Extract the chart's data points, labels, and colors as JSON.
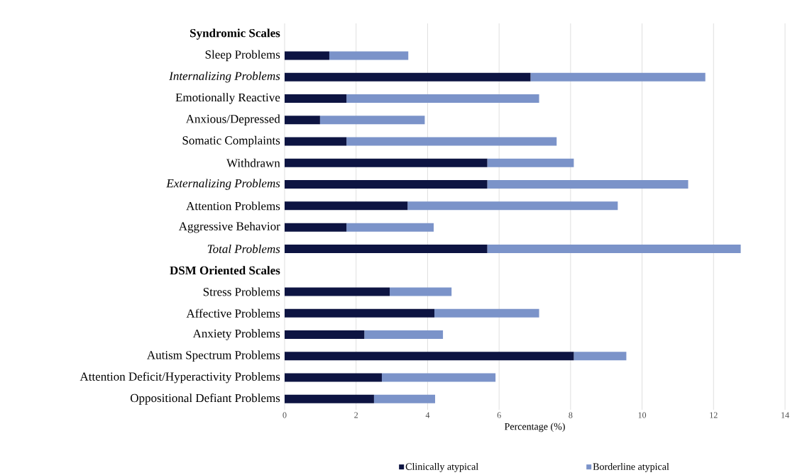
{
  "chart_data": {
    "type": "bar",
    "orientation": "horizontal",
    "stacked": true,
    "categories": [
      "**Syndromic Scales**",
      "Sleep Problems",
      "*Internalizing Problems*",
      "Emotionally Reactive",
      "Anxious/Depressed",
      "Somatic Complaints",
      "Withdrawn",
      "*Externalizing Problems*",
      "Attention Problems",
      "Aggressive Behavior",
      "*Total Problems*",
      "**DSM Oriented Scales**",
      "Stress Problems",
      "Affective Problems",
      "Anxiety Problems",
      "Autism Spectrum Problems",
      "Attention Deficit/Hyperactivity Problems",
      "Oppositional Defiant Problems"
    ],
    "series": [
      {
        "name": "Clinically atypical",
        "color": "#0d1442",
        "values": [
          null,
          1.25,
          6.88,
          1.73,
          0.99,
          1.73,
          5.67,
          5.67,
          3.44,
          1.73,
          5.67,
          null,
          2.94,
          4.19,
          2.23,
          8.09,
          2.72,
          2.5
        ]
      },
      {
        "name": "Borderline atypical",
        "color": "#7b93c9",
        "values": [
          null,
          2.21,
          4.89,
          5.39,
          2.93,
          5.88,
          2.42,
          5.62,
          5.88,
          2.44,
          7.09,
          null,
          1.73,
          2.93,
          2.2,
          1.47,
          3.18,
          1.71
        ]
      }
    ],
    "xlabel": "Percentage (%)",
    "xlim": [
      0,
      14
    ],
    "xticks": [
      0,
      2,
      4,
      6,
      8,
      10,
      12,
      14
    ],
    "grid": "x",
    "legend": "bottom"
  }
}
